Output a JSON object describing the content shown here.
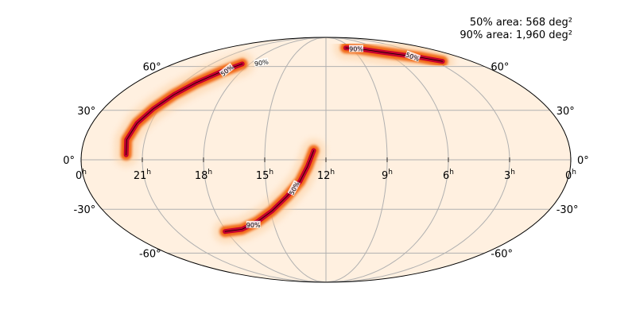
{
  "chart_data": {
    "type": "heatmap",
    "projection": "mollweide",
    "annotations": [
      {
        "key": "area50",
        "label": "50% area",
        "value": "568 deg²"
      },
      {
        "key": "area90",
        "label": "90% area",
        "value": "1,960 deg²"
      }
    ],
    "ra_ticks": [
      {
        "hours": 0,
        "label": "0"
      },
      {
        "hours": 3,
        "label": "3"
      },
      {
        "hours": 6,
        "label": "6"
      },
      {
        "hours": 9,
        "label": "9"
      },
      {
        "hours": 12,
        "label": "12"
      },
      {
        "hours": 15,
        "label": "15"
      },
      {
        "hours": 18,
        "label": "18"
      },
      {
        "hours": 21,
        "label": "21"
      },
      {
        "hours": 24,
        "label": "0"
      }
    ],
    "ra_unit": "h",
    "dec_ticks": [
      {
        "deg": 60,
        "label": "60°"
      },
      {
        "deg": 30,
        "label": "30°"
      },
      {
        "deg": 0,
        "label": "0°"
      },
      {
        "deg": -30,
        "label": "-30°"
      },
      {
        "deg": -60,
        "label": "-60°"
      }
    ],
    "contour_labels": [
      "50%",
      "90%"
    ],
    "probability_region": {
      "description_path_ra_dec": [
        [
          11.8,
          5
        ],
        [
          12.3,
          -5
        ],
        [
          13.2,
          -18
        ],
        [
          14.4,
          -28
        ],
        [
          15.8,
          -37
        ],
        [
          17.0,
          -42
        ],
        [
          18.0,
          -44
        ],
        [
          3.5,
          68
        ],
        [
          5.0,
          69
        ],
        [
          6.5,
          71
        ],
        [
          8.0,
          74
        ],
        [
          9.2,
          76
        ],
        [
          19.5,
          55
        ],
        [
          20.2,
          49
        ],
        [
          20.8,
          40
        ],
        [
          21.3,
          30
        ],
        [
          21.7,
          22
        ],
        [
          21.9,
          12
        ],
        [
          21.8,
          2
        ]
      ]
    },
    "colors": {
      "background_sky": "#fff0e0",
      "low": "#fdd0a2",
      "mid": "#f16913",
      "high": "#c4002e",
      "contour": "#000000",
      "grid": "#b0b0b0"
    },
    "grid": true
  }
}
